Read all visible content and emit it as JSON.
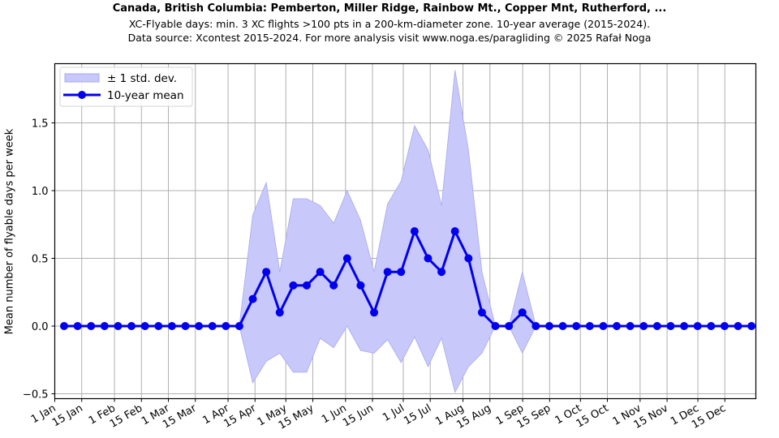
{
  "header": {
    "title": "Canada, British Columbia: Pemberton, Miller Ridge, Rainbow Mt., Copper Mnt, Rutherford, ...",
    "subtitle1": "XC-Flyable days: min. 3 XC flights >100 pts in a 200-km-diameter zone. 10-year average (2015-2024).",
    "subtitle2": "Data source: Xcontest 2015-2024. For more analysis visit www.noga.es/paragliding © 2025 Rafał Noga"
  },
  "legend": {
    "band_label": "± 1 std. dev.",
    "line_label": "10-year mean"
  },
  "colors": {
    "line": "#0000ee",
    "band": "#c8c8fa",
    "band_edge": "#a8a8f0",
    "grid": "#b0b0b0"
  },
  "chart_data": {
    "type": "line",
    "title": "Canada, British Columbia: Pemberton, Miller Ridge, Rainbow Mt., Copper Mnt, Rutherford, ...",
    "xlabel": "",
    "ylabel": "Mean number of flyable days per week",
    "ylim": [
      -0.53,
      1.9
    ],
    "yticks": [
      -0.5,
      0.0,
      0.5,
      1.0,
      1.5
    ],
    "ytick_labels": [
      "−0.5",
      "0.0",
      "0.5",
      "1.0",
      "1.5"
    ],
    "xtick_labels": [
      "1 Jan",
      "15 Jan",
      "1 Feb",
      "15 Feb",
      "1 Mar",
      "15 Mar",
      "1 Apr",
      "15 Apr",
      "1 May",
      "15 May",
      "1 Jun",
      "15 Jun",
      "1 Jul",
      "15 Jul",
      "1 Aug",
      "15 Aug",
      "1 Sep",
      "15 Sep",
      "1 Oct",
      "15 Oct",
      "1 Nov",
      "15 Nov",
      "1 Dec",
      "15 Dec"
    ],
    "xtick_days": [
      0,
      14,
      31,
      45,
      59,
      73,
      90,
      104,
      120,
      134,
      151,
      165,
      181,
      195,
      212,
      226,
      243,
      257,
      273,
      287,
      304,
      318,
      334,
      348
    ],
    "grid": true,
    "legend_position": "upper left",
    "x_week": [
      1,
      2,
      3,
      4,
      5,
      6,
      7,
      8,
      9,
      10,
      11,
      12,
      13,
      14,
      15,
      16,
      17,
      18,
      19,
      20,
      21,
      22,
      23,
      24,
      25,
      26,
      27,
      28,
      29,
      30,
      31,
      32,
      33,
      34,
      35,
      36,
      37,
      38,
      39,
      40,
      41,
      42,
      43,
      44,
      45,
      46,
      47,
      48,
      49,
      50,
      51,
      52
    ],
    "series": [
      {
        "name": "10-year mean",
        "values": [
          0,
          0,
          0,
          0,
          0,
          0,
          0,
          0,
          0,
          0,
          0,
          0,
          0,
          0,
          0.2,
          0.4,
          0.1,
          0.3,
          0.3,
          0.4,
          0.3,
          0.5,
          0.3,
          0.1,
          0.4,
          0.4,
          0.7,
          0.5,
          0.4,
          0.7,
          0.5,
          0.1,
          0,
          0,
          0.1,
          0,
          0,
          0,
          0,
          0,
          0,
          0,
          0,
          0,
          0,
          0,
          0,
          0,
          0,
          0,
          0,
          0
        ]
      },
      {
        "name": "+1 std. dev. (upper)",
        "values": [
          0,
          0,
          0,
          0,
          0,
          0,
          0,
          0,
          0,
          0,
          0,
          0,
          0,
          0,
          0.82,
          1.06,
          0.4,
          0.94,
          0.94,
          0.89,
          0.76,
          1.0,
          0.78,
          0.4,
          0.9,
          1.07,
          1.48,
          1.3,
          0.89,
          1.89,
          1.3,
          0.4,
          0,
          0,
          0.4,
          0,
          0,
          0,
          0,
          0,
          0,
          0,
          0,
          0,
          0,
          0,
          0,
          0,
          0,
          0,
          0,
          0
        ]
      },
      {
        "name": "-1 std. dev. (lower)",
        "values": [
          0,
          0,
          0,
          0,
          0,
          0,
          0,
          0,
          0,
          0,
          0,
          0,
          0,
          0,
          -0.42,
          -0.26,
          -0.2,
          -0.34,
          -0.34,
          -0.09,
          -0.16,
          0.0,
          -0.18,
          -0.2,
          -0.1,
          -0.27,
          -0.08,
          -0.3,
          -0.09,
          -0.49,
          -0.3,
          -0.2,
          0,
          0,
          -0.2,
          0,
          0,
          0,
          0,
          0,
          0,
          0,
          0,
          0,
          0,
          0,
          0,
          0,
          0,
          0,
          0,
          0
        ]
      }
    ]
  }
}
